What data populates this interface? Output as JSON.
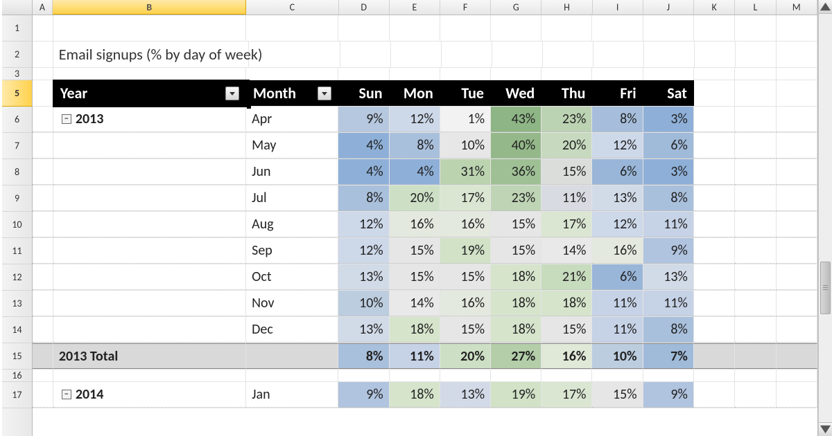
{
  "columns": {
    "letters": [
      "A",
      "B",
      "C",
      "D",
      "E",
      "F",
      "G",
      "H",
      "I",
      "J",
      "K",
      "L",
      "M"
    ],
    "widths": [
      30,
      282,
      135,
      74,
      74,
      74,
      74,
      74,
      74,
      74,
      60,
      60,
      60
    ],
    "selected": "B"
  },
  "row_numbers": [
    "1",
    "2",
    "3",
    "5",
    "6",
    "7",
    "8",
    "9",
    "10",
    "11",
    "12",
    "13",
    "14",
    "15",
    "16",
    "17"
  ],
  "selected_row": "5",
  "short_rows": [
    "3",
    "16"
  ],
  "title": "Email signups (% by day of week)",
  "pivot": {
    "year_label": "Year",
    "month_label": "Month",
    "day_headers": [
      "Sun",
      "Mon",
      "Tue",
      "Wed",
      "Thu",
      "Fri",
      "Sat"
    ],
    "groups": [
      {
        "year": "2013",
        "rows": [
          {
            "month": "Apr",
            "vals": [
              "9%",
              "12%",
              "1%",
              "43%",
              "23%",
              "8%",
              "3%"
            ],
            "bg": [
              "#b6c8df",
              "#cdd8e9",
              "#f2f2f2",
              "#8eb585",
              "#bcd3b3",
              "#a6bedb",
              "#8eb0d8"
            ]
          },
          {
            "month": "May",
            "vals": [
              "4%",
              "8%",
              "10%",
              "40%",
              "20%",
              "12%",
              "6%"
            ],
            "bg": [
              "#8eb0d8",
              "#a9c0dc",
              "#e7e7e7",
              "#94b889",
              "#c7dabf",
              "#cdd8e9",
              "#a0bada"
            ]
          },
          {
            "month": "Jun",
            "vals": [
              "4%",
              "4%",
              "31%",
              "36%",
              "15%",
              "6%",
              "3%"
            ],
            "bg": [
              "#8eb0d8",
              "#8eb0d8",
              "#bcd3b0",
              "#9fc095",
              "#dbdddb",
              "#99b6d8",
              "#8eb0d8"
            ]
          },
          {
            "month": "Jul",
            "vals": [
              "8%",
              "20%",
              "17%",
              "23%",
              "11%",
              "13%",
              "8%"
            ],
            "bg": [
              "#a9c0dc",
              "#cde0c5",
              "#dbe6d2",
              "#bed4b5",
              "#d8dbe1",
              "#d1dae7",
              "#a9c0dc"
            ]
          },
          {
            "month": "Aug",
            "vals": [
              "12%",
              "16%",
              "16%",
              "15%",
              "17%",
              "12%",
              "11%"
            ],
            "bg": [
              "#cdd8e9",
              "#e4e9df",
              "#e4e9df",
              "#e6e6e6",
              "#dbe6d2",
              "#cdd8e9",
              "#c6d2e6"
            ]
          },
          {
            "month": "Sep",
            "vals": [
              "12%",
              "15%",
              "19%",
              "15%",
              "14%",
              "16%",
              "9%"
            ],
            "bg": [
              "#cdd8e9",
              "#e6e6e6",
              "#d1e2c7",
              "#e6e6e6",
              "#e9e9e9",
              "#e4e9df",
              "#b0c3df"
            ]
          },
          {
            "month": "Oct",
            "vals": [
              "13%",
              "15%",
              "15%",
              "18%",
              "21%",
              "6%",
              "13%"
            ],
            "bg": [
              "#d1dae7",
              "#e6e6e6",
              "#e6e6e6",
              "#d6e4cc",
              "#c7dbbd",
              "#99b6d8",
              "#d1dae7"
            ]
          },
          {
            "month": "Nov",
            "vals": [
              "10%",
              "14%",
              "16%",
              "18%",
              "18%",
              "11%",
              "11%"
            ],
            "bg": [
              "#bccddf",
              "#e9e9e9",
              "#e4e9df",
              "#d6e4cc",
              "#d6e4cc",
              "#c6d2e6",
              "#c6d2e6"
            ]
          },
          {
            "month": "Dec",
            "vals": [
              "13%",
              "18%",
              "15%",
              "18%",
              "15%",
              "11%",
              "8%"
            ],
            "bg": [
              "#d1dae7",
              "#d6e4cc",
              "#e6e6e6",
              "#d6e4cc",
              "#e6e6e6",
              "#c6d2e6",
              "#a9c0dc"
            ]
          }
        ],
        "total_label": "2013 Total",
        "total_vals": [
          "8%",
          "11%",
          "20%",
          "27%",
          "16%",
          "10%",
          "7%"
        ],
        "total_bg": [
          "#a9c0dc",
          "#c6d2e6",
          "#cde0c5",
          "#b3ce a8",
          "#e0e8d8",
          "#bccddf",
          "#a0bada"
        ]
      },
      {
        "year": "2014",
        "rows": [
          {
            "month": "Jan",
            "vals": [
              "9%",
              "18%",
              "13%",
              "19%",
              "17%",
              "15%",
              "9%"
            ],
            "bg": [
              "#b0c3df",
              "#d6e4cc",
              "#d3dae7",
              "#d1e2c7",
              "#dbe6d2",
              "#e6e6e6",
              "#b0c3df"
            ]
          }
        ]
      }
    ]
  },
  "heatmap_scale": {
    "low_color": "#8eb0d8",
    "mid_color": "#ffffff",
    "high_color": "#8eb585"
  },
  "scrollbar": {
    "thumb_top_pct": 60,
    "thumb_height_pct": 12
  },
  "style": {
    "font_family": "Calibri",
    "header_bg": "#000000",
    "header_fg": "#ffffff",
    "total_bg": "#d9d9d9",
    "grid_border": "#e4e4e4",
    "dotted_border": "#bcbcbc",
    "col_selected_bg": "#ffd24d",
    "row_selected_bg": "#ffd24d"
  }
}
